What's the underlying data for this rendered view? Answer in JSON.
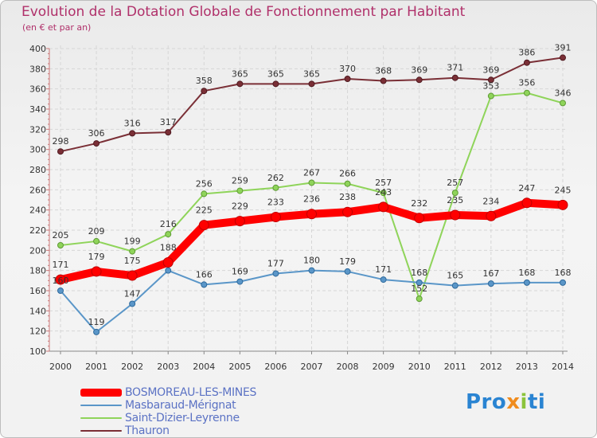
{
  "title": "Evolution de la Dotation Globale de Fonctionnement par Habitant",
  "subtitle": "(en € et par an)",
  "logo": {
    "part1": "Pro",
    "part2": "x",
    "part3": "i",
    "part4": "ti"
  },
  "chart_data": {
    "type": "line",
    "title": "Evolution de la Dotation Globale de Fonctionnement par Habitant",
    "ylabel": "(en € et par an)",
    "xlabel": "",
    "categories": [
      "2000",
      "2001",
      "2002",
      "2003",
      "2004",
      "2005",
      "2006",
      "2007",
      "2008",
      "2009",
      "2010",
      "2011",
      "2012",
      "2013",
      "2014"
    ],
    "ylim": [
      100,
      400
    ],
    "yticks": [
      100,
      120,
      140,
      160,
      180,
      200,
      220,
      240,
      260,
      280,
      300,
      320,
      340,
      360,
      380,
      400
    ],
    "grid": true,
    "legend": "bottom-left",
    "series": [
      {
        "name": "Thauron",
        "color": "#7a2f36",
        "values": [
          298,
          306,
          316,
          317,
          358,
          365,
          365,
          365,
          370,
          368,
          369,
          371,
          369,
          386,
          391
        ]
      },
      {
        "name": "Saint-Dizier-Leyrenne",
        "color": "#8fd45a",
        "values": [
          205,
          209,
          199,
          216,
          256,
          259,
          262,
          267,
          266,
          257,
          152,
          257,
          353,
          356,
          346
        ]
      },
      {
        "name": "Masbaraud-Mérignat",
        "color": "#5a96c8",
        "values": [
          160,
          119,
          147,
          180,
          166,
          169,
          177,
          180,
          179,
          171,
          168,
          165,
          167,
          168,
          168
        ]
      },
      {
        "name": "BOSMOREAU-LES-MINES",
        "color": "#ff0000",
        "values": [
          171,
          179,
          175,
          188,
          225,
          229,
          233,
          236,
          238,
          243,
          232,
          235,
          234,
          247,
          245
        ]
      }
    ],
    "data_labels": {
      "Thauron": [
        "298",
        "306",
        "316",
        "317",
        "358",
        "365",
        "365",
        "365",
        "370",
        "368",
        "369",
        "371",
        "369",
        "386",
        "391"
      ],
      "Saint-Dizier-Leyrenne": [
        "205",
        "209",
        "199",
        "216",
        "256",
        "259",
        "262",
        "267",
        "266",
        "257",
        "152",
        "257",
        "353",
        "356",
        "346"
      ],
      "Masbaraud-Mérignat": [
        "160",
        "119",
        "147",
        "",
        "166",
        "169",
        "177",
        "180",
        "179",
        "171",
        "168",
        "165",
        "167",
        "168",
        "168"
      ],
      "BOSMOREAU-LES-MINES": [
        "171",
        "179",
        "175",
        "188",
        "225",
        "229",
        "233",
        "236",
        "238",
        "243",
        "232",
        "235",
        "234",
        "247",
        "245"
      ]
    }
  },
  "legend_items": [
    {
      "name": "BOSMOREAU-LES-MINES",
      "color": "#ff0000"
    },
    {
      "name": "Masbaraud-Mérignat",
      "color": "#5a96c8"
    },
    {
      "name": "Saint-Dizier-Leyrenne",
      "color": "#8fd45a"
    },
    {
      "name": "Thauron",
      "color": "#7a2f36"
    }
  ]
}
